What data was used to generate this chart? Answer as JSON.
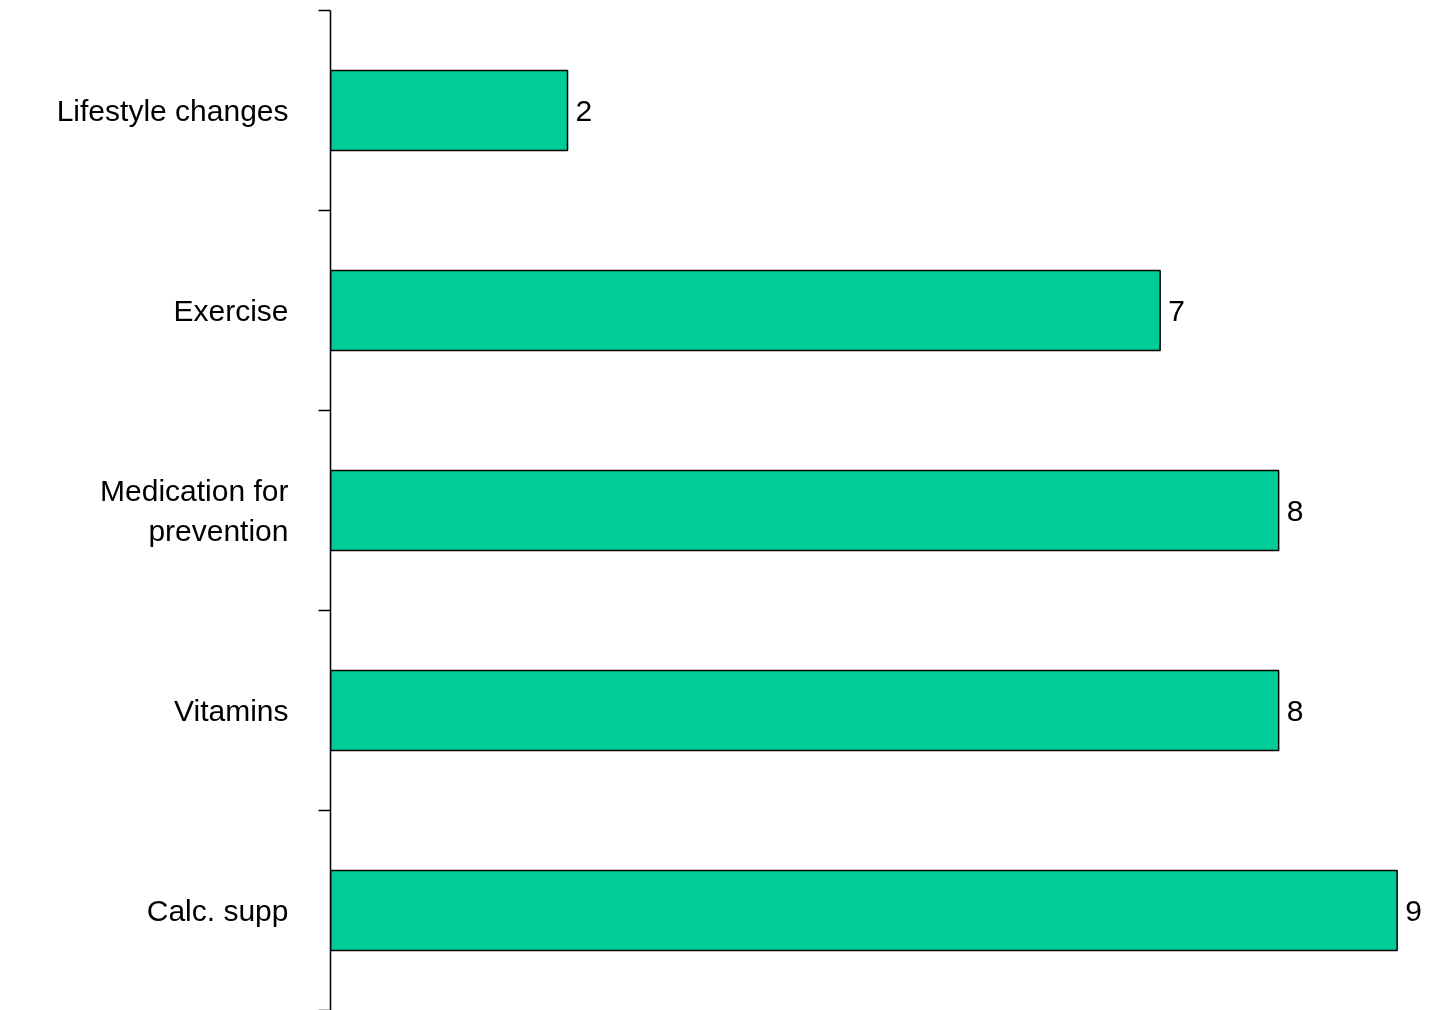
{
  "chart_data": {
    "type": "bar",
    "orientation": "horizontal",
    "categories": [
      "Lifestyle changes",
      "Exercise",
      "Medication for prevention",
      "Vitamins",
      "Calc. supp"
    ],
    "values": [
      2,
      7,
      8,
      8,
      9
    ],
    "color": "#00cc99",
    "data_labels": true,
    "tick_labels": "y"
  }
}
